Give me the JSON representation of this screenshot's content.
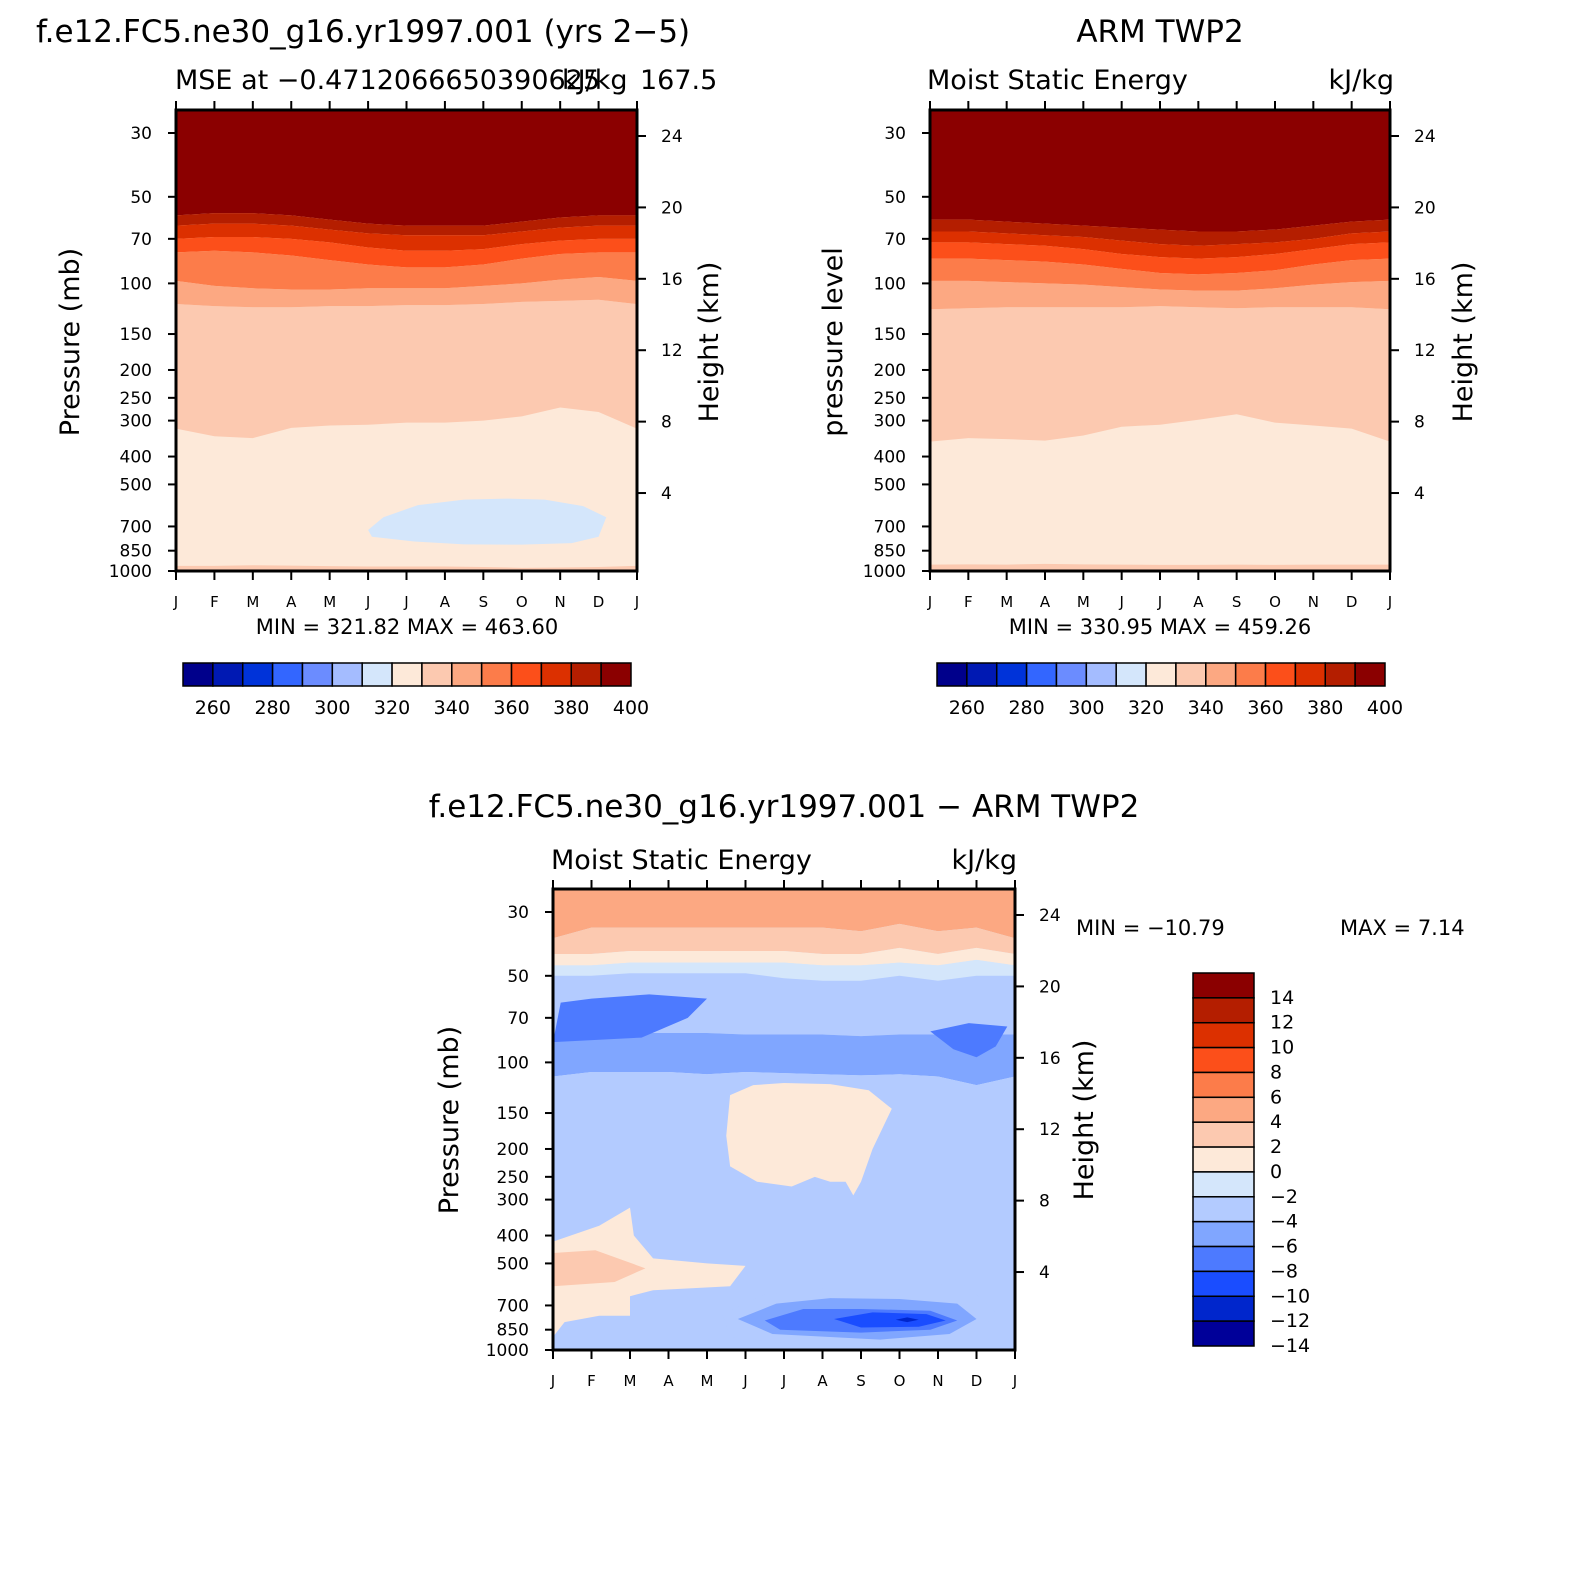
{
  "chart_data": [
    {
      "type": "contour",
      "suptitle": "f.e12.FC5.ne30_g16.yr1997.001 (yrs 2−5)",
      "left_title": "MSE at −0.4712066650390625",
      "right_title": "kJ/kg",
      "right_title_overlap": "167.5",
      "ylabel": "Pressure (mb)",
      "ylabel_right": "Height (km)",
      "xlabels": [
        "J",
        "F",
        "M",
        "A",
        "M",
        "J",
        "J",
        "A",
        "S",
        "O",
        "N",
        "D",
        "J"
      ],
      "pressure_ticks": [
        30,
        50,
        70,
        100,
        150,
        200,
        250,
        300,
        400,
        500,
        700,
        850,
        1000
      ],
      "height_ticks": [
        24,
        20,
        16,
        12,
        8,
        4
      ],
      "stats": "MIN = 321.82 MAX = 463.60",
      "min": 321.82,
      "max": 463.6,
      "contour_bands": [
        {
          "value": 400,
          "top_mb": 30,
          "bottom_mb": 60
        },
        {
          "value": 390,
          "top_mb": 58,
          "bottom_mb": 65
        },
        {
          "value": 380,
          "top_mb": 63,
          "bottom_mb": 72
        },
        {
          "value": 370,
          "top_mb": 70,
          "bottom_mb": 80
        },
        {
          "value": 360,
          "top_mb": 78,
          "bottom_mb": 98
        },
        {
          "value": 350,
          "top_mb": 95,
          "bottom_mb": 118
        },
        {
          "value": 340,
          "top_mb": 115,
          "bottom_mb": 320
        },
        {
          "value": 330,
          "top_mb": 300,
          "bottom_mb": 950
        },
        {
          "value": 320,
          "region": "Jun-Nov 600-780 mb"
        }
      ]
    },
    {
      "type": "contour",
      "suptitle": "ARM TWP2",
      "left_title": "Moist Static Energy",
      "right_title": "kJ/kg",
      "ylabel": "pressure level",
      "ylabel_right": "Height (km)",
      "xlabels": [
        "J",
        "F",
        "M",
        "A",
        "M",
        "J",
        "J",
        "A",
        "S",
        "O",
        "N",
        "D",
        "J"
      ],
      "pressure_ticks": [
        30,
        50,
        70,
        100,
        150,
        200,
        250,
        300,
        400,
        500,
        700,
        850,
        1000
      ],
      "height_ticks": [
        24,
        20,
        16,
        12,
        8,
        4
      ],
      "stats": "MIN = 330.95 MAX = 459.26",
      "min": 330.95,
      "max": 459.26
    },
    {
      "type": "contour",
      "suptitle": "f.e12.FC5.ne30_g16.yr1997.001 − ARM TWP2",
      "left_title": "Moist Static Energy",
      "right_title": "kJ/kg",
      "ylabel": "Pressure (mb)",
      "ylabel_right": "Height (km)",
      "xlabels": [
        "J",
        "F",
        "M",
        "A",
        "M",
        "J",
        "J",
        "A",
        "S",
        "O",
        "N",
        "D",
        "J"
      ],
      "pressure_ticks": [
        30,
        50,
        70,
        100,
        150,
        200,
        250,
        300,
        400,
        500,
        700,
        850,
        1000
      ],
      "height_ticks": [
        24,
        20,
        16,
        12,
        8,
        4
      ],
      "stats_min": "MIN = −10.79",
      "stats_max": "MAX =    7.14",
      "min": -10.79,
      "max": 7.14
    }
  ],
  "colorbars": {
    "abs_labels": [
      "260",
      "280",
      "300",
      "320",
      "340",
      "360",
      "380",
      "400"
    ],
    "abs_colors": [
      "#00008b",
      "#0019b3",
      "#0033d9",
      "#3366ff",
      "#6b8cff",
      "#a4bcff",
      "#d4e6fb",
      "#fde9d9",
      "#fcc9b0",
      "#fca882",
      "#fc7c4a",
      "#fc4f1a",
      "#dc3000",
      "#b41e00",
      "#8b0000"
    ],
    "diff_labels": [
      "14",
      "12",
      "10",
      "8",
      "6",
      "4",
      "2",
      "0",
      "−2",
      "−4",
      "−6",
      "−8",
      "−10",
      "−12",
      "−14"
    ],
    "diff_colors": [
      "#8b0000",
      "#b41e00",
      "#dc3000",
      "#fc4f1a",
      "#fc7c4a",
      "#fca882",
      "#fcc9b0",
      "#fde9d9",
      "#d4e6fb",
      "#b3cbff",
      "#80a6ff",
      "#4d7aff",
      "#1a4dff",
      "#0026cc",
      "#000099"
    ]
  }
}
